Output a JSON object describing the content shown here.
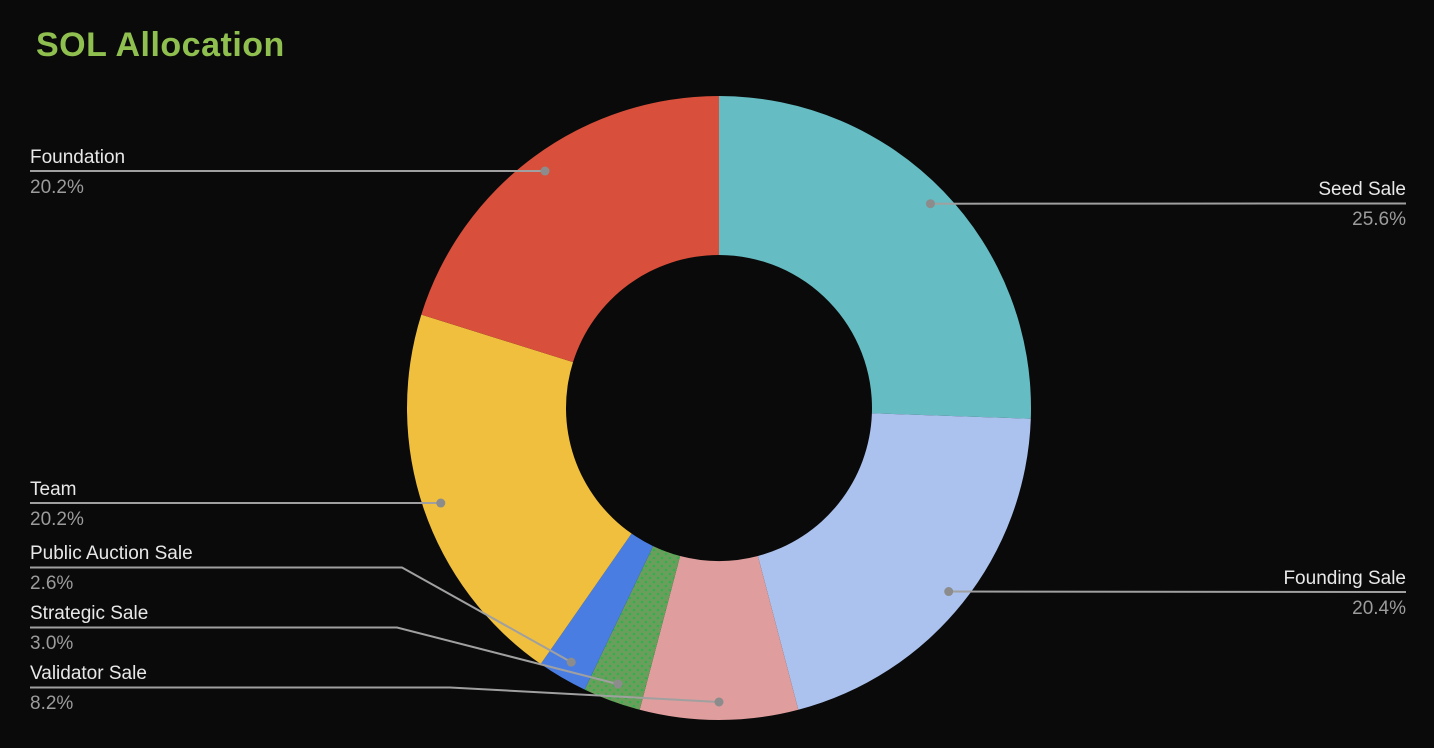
{
  "background_color": "#0a0a0a",
  "title_color": "#8fc04f",
  "label_color": "#e8e8e8",
  "percent_color": "#9c9c9c",
  "leader_line_color": "#a0a0a0",
  "leader_dot_color": "#8c8c8c",
  "chart_data": {
    "type": "pie",
    "subtype": "donut",
    "title": "SOL Allocation",
    "direction": "clockwise",
    "start_angle_deg": 0,
    "legend_position": "callout-labels",
    "grid": false,
    "slices": [
      {
        "label": "Seed Sale",
        "value": 25.6,
        "pct_label": "25.6%",
        "color": "#65bcc2"
      },
      {
        "label": "Founding Sale",
        "value": 20.4,
        "pct_label": "20.4%",
        "color": "#abc2ee"
      },
      {
        "label": "Validator Sale",
        "value": 8.2,
        "pct_label": "8.2%",
        "color": "#df9d9d"
      },
      {
        "label": "Strategic Sale",
        "value": 3.0,
        "pct_label": "3.0%",
        "color": "#6b9e5c",
        "pattern": "dots",
        "pattern_dot_color": "#2fb24b"
      },
      {
        "label": "Public Auction Sale",
        "value": 2.6,
        "pct_label": "2.6%",
        "color": "#4a7de2"
      },
      {
        "label": "Team",
        "value": 20.2,
        "pct_label": "20.2%",
        "color": "#efbf3d"
      },
      {
        "label": "Foundation",
        "value": 20.2,
        "pct_label": "20.2%",
        "color": "#d84f3b"
      }
    ]
  }
}
